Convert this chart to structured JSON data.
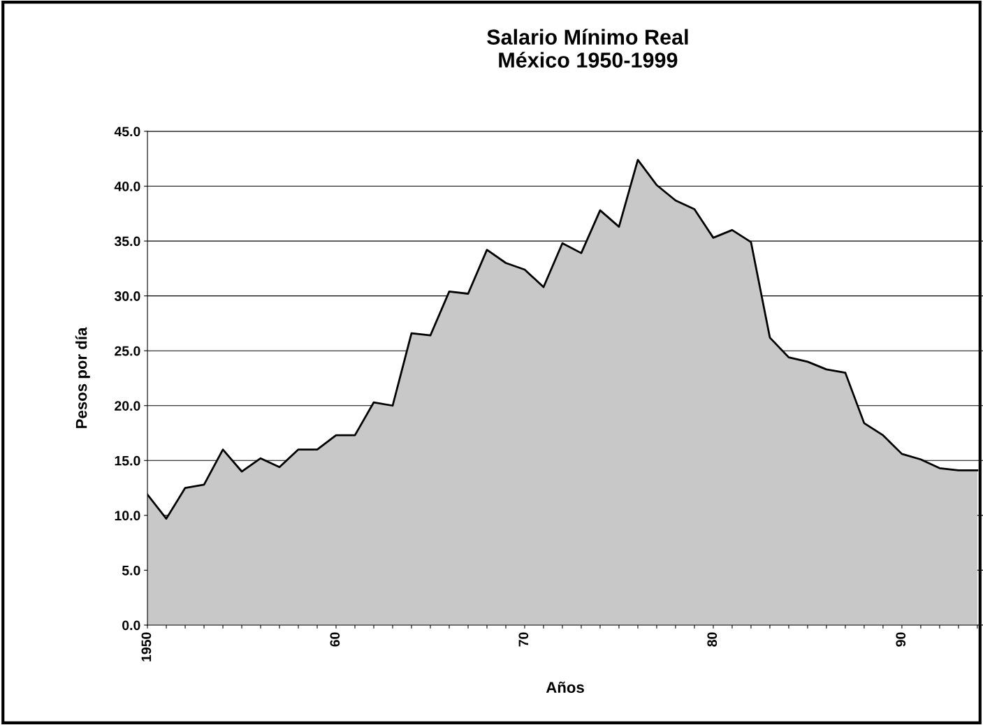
{
  "chart_data": {
    "type": "area",
    "title": "Salario Mínimo Real\nMéxico 1950-1999",
    "xlabel": "Años",
    "ylabel": "Pesos por día",
    "x": [
      1950,
      1951,
      1952,
      1953,
      1954,
      1955,
      1956,
      1957,
      1958,
      1959,
      1960,
      1961,
      1962,
      1963,
      1964,
      1965,
      1966,
      1967,
      1968,
      1969,
      1970,
      1971,
      1972,
      1973,
      1974,
      1975,
      1976,
      1977,
      1978,
      1979,
      1980,
      1981,
      1982,
      1983,
      1984,
      1985,
      1986,
      1987,
      1988,
      1989,
      1990,
      1991,
      1992,
      1993,
      1994
    ],
    "series": [
      {
        "color": "#c8c8c8",
        "values": [
          11.9,
          9.7,
          12.5,
          12.8,
          16.0,
          14.0,
          15.2,
          14.4,
          16.0,
          16.0,
          17.3,
          17.3,
          20.3,
          20.0,
          26.6,
          26.4,
          30.4,
          30.2,
          34.2,
          33.0,
          32.4,
          30.8,
          34.8,
          33.9,
          37.8,
          36.3,
          42.4,
          40.1,
          38.7,
          37.9,
          35.3,
          36.0,
          34.9,
          26.2,
          24.4,
          24.0,
          23.3,
          23.0,
          18.4,
          17.3,
          15.6,
          15.1,
          14.3,
          14.1,
          14.1
        ]
      }
    ],
    "xlim": [
      1950,
      1994.3
    ],
    "ylim": [
      0,
      45
    ],
    "xticks": [
      {
        "value": 1950,
        "label": "1950"
      },
      {
        "value": 1951,
        "label": null
      },
      {
        "value": 1952,
        "label": null
      },
      {
        "value": 1953,
        "label": null
      },
      {
        "value": 1954,
        "label": null
      },
      {
        "value": 1955,
        "label": null
      },
      {
        "value": 1956,
        "label": null
      },
      {
        "value": 1957,
        "label": null
      },
      {
        "value": 1958,
        "label": null
      },
      {
        "value": 1959,
        "label": null
      },
      {
        "value": 1960,
        "label": "60"
      },
      {
        "value": 1961,
        "label": null
      },
      {
        "value": 1962,
        "label": null
      },
      {
        "value": 1963,
        "label": null
      },
      {
        "value": 1964,
        "label": null
      },
      {
        "value": 1965,
        "label": null
      },
      {
        "value": 1966,
        "label": null
      },
      {
        "value": 1967,
        "label": null
      },
      {
        "value": 1968,
        "label": null
      },
      {
        "value": 1969,
        "label": null
      },
      {
        "value": 1970,
        "label": "70"
      },
      {
        "value": 1971,
        "label": null
      },
      {
        "value": 1972,
        "label": null
      },
      {
        "value": 1973,
        "label": null
      },
      {
        "value": 1974,
        "label": null
      },
      {
        "value": 1975,
        "label": null
      },
      {
        "value": 1976,
        "label": null
      },
      {
        "value": 1977,
        "label": null
      },
      {
        "value": 1978,
        "label": null
      },
      {
        "value": 1979,
        "label": null
      },
      {
        "value": 1980,
        "label": "80"
      },
      {
        "value": 1981,
        "label": null
      },
      {
        "value": 1982,
        "label": null
      },
      {
        "value": 1983,
        "label": null
      },
      {
        "value": 1984,
        "label": null
      },
      {
        "value": 1985,
        "label": null
      },
      {
        "value": 1986,
        "label": null
      },
      {
        "value": 1987,
        "label": null
      },
      {
        "value": 1988,
        "label": null
      },
      {
        "value": 1989,
        "label": null
      },
      {
        "value": 1990,
        "label": "90"
      },
      {
        "value": 1991,
        "label": null
      },
      {
        "value": 1992,
        "label": null
      },
      {
        "value": 1993,
        "label": null
      },
      {
        "value": 1994,
        "label": null
      }
    ],
    "yticks": [
      {
        "value": 0,
        "label": "0.0"
      },
      {
        "value": 5,
        "label": "5.0"
      },
      {
        "value": 10,
        "label": "10.0"
      },
      {
        "value": 15,
        "label": "15.0"
      },
      {
        "value": 20,
        "label": "20.0"
      },
      {
        "value": 25,
        "label": "25.0"
      },
      {
        "value": 30,
        "label": "30.0"
      },
      {
        "value": 35,
        "label": "35.0"
      },
      {
        "value": 40,
        "label": "40.0"
      },
      {
        "value": 45,
        "label": "45.0"
      }
    ],
    "grid": "y",
    "legend": false
  }
}
